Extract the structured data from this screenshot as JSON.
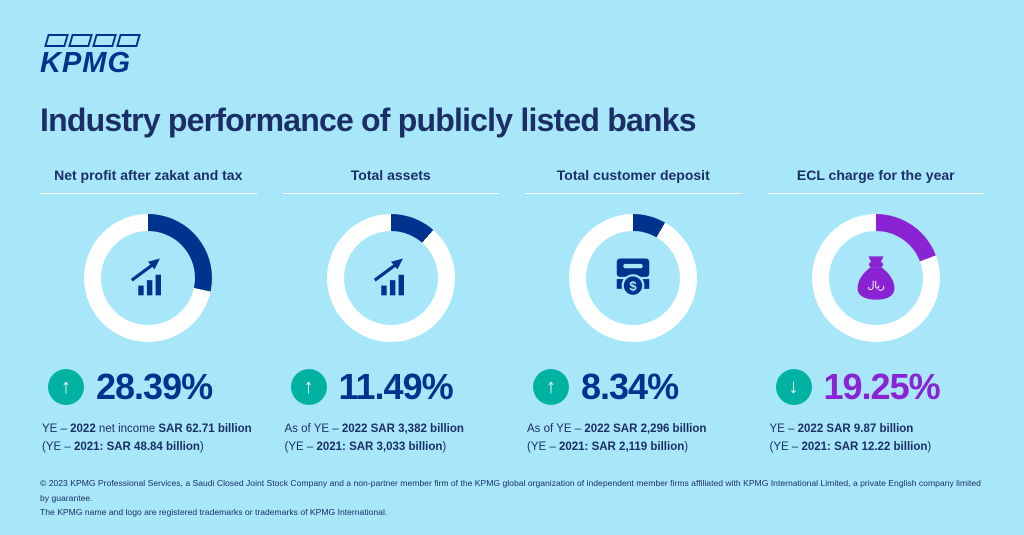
{
  "brand": {
    "logo_text": "KPMG"
  },
  "header": {
    "title": "Industry performance of publicly listed banks"
  },
  "colors": {
    "background": "#a8e7f9",
    "navy": "#00338d",
    "teal": "#00b2a2",
    "purple": "#8a23d4",
    "white": "#ffffff"
  },
  "chart_data": [
    {
      "type": "pie",
      "subtype": "donut",
      "title": "Net profit after zakat and tax",
      "percent": 28.39,
      "percent_label": "28.39%",
      "values": [
        28.39,
        71.61
      ],
      "labels": [
        "change",
        "remainder"
      ],
      "direction": "up",
      "arrow_glyph": "↑",
      "arc_color": "#00338d",
      "value_color": "#00338d",
      "icon": "growth-bars-icon",
      "line1": [
        {
          "t": "YE – ",
          "b": false
        },
        {
          "t": "2022",
          "b": true
        },
        {
          "t": " net income ",
          "b": false
        },
        {
          "t": "SAR 62.71 billion",
          "b": true
        }
      ],
      "line2": [
        {
          "t": "(YE – ",
          "b": false
        },
        {
          "t": "2021: SAR 48.84 billion",
          "b": true
        },
        {
          "t": ")",
          "b": false
        }
      ]
    },
    {
      "type": "pie",
      "subtype": "donut",
      "title": "Total assets",
      "percent": 11.49,
      "percent_label": "11.49%",
      "values": [
        11.49,
        88.51
      ],
      "labels": [
        "change",
        "remainder"
      ],
      "direction": "up",
      "arrow_glyph": "↑",
      "arc_color": "#00338d",
      "value_color": "#00338d",
      "icon": "growth-bars-icon",
      "line1": [
        {
          "t": "As of YE – ",
          "b": false
        },
        {
          "t": "2022 SAR 3,382 billion",
          "b": true
        }
      ],
      "line2": [
        {
          "t": "(YE – ",
          "b": false
        },
        {
          "t": "2021: SAR 3,033 billion",
          "b": true
        },
        {
          "t": ")",
          "b": false
        }
      ]
    },
    {
      "type": "pie",
      "subtype": "donut",
      "title": "Total customer deposit",
      "percent": 8.34,
      "percent_label": "8.34%",
      "values": [
        8.34,
        91.66
      ],
      "labels": [
        "change",
        "remainder"
      ],
      "direction": "up",
      "arrow_glyph": "↑",
      "arc_color": "#00338d",
      "value_color": "#00338d",
      "icon": "atm-deposit-icon",
      "icon_label": "$",
      "line1": [
        {
          "t": "As of YE – ",
          "b": false
        },
        {
          "t": "2022 SAR 2,296 billion",
          "b": true
        }
      ],
      "line2": [
        {
          "t": "(YE – ",
          "b": false
        },
        {
          "t": "2021: SAR 2,119 billion",
          "b": true
        },
        {
          "t": ")",
          "b": false
        }
      ]
    },
    {
      "type": "pie",
      "subtype": "donut",
      "title": "ECL charge for the year",
      "percent": 19.25,
      "percent_label": "19.25%",
      "values": [
        19.25,
        80.75
      ],
      "labels": [
        "change",
        "remainder"
      ],
      "direction": "down",
      "arrow_glyph": "↓",
      "arc_color": "#8a23d4",
      "value_color": "#8a23d4",
      "icon": "money-bag-icon",
      "icon_label": "ريال",
      "line1": [
        {
          "t": "YE – ",
          "b": false
        },
        {
          "t": "2022 SAR 9.87 billion",
          "b": true
        }
      ],
      "line2": [
        {
          "t": "(YE – ",
          "b": false
        },
        {
          "t": "2021: SAR 12.22 billion",
          "b": true
        },
        {
          "t": ")",
          "b": false
        }
      ]
    }
  ],
  "footer": {
    "line1": "© 2023 KPMG Professional Services, a Saudi Closed Joint Stock Company and a non-partner member firm of the KPMG global organization of independent member firms affiliated with KPMG International Limited, a private English company limited by guarantee.",
    "line2": "The KPMG name and logo are registered trademarks or trademarks of KPMG International."
  }
}
